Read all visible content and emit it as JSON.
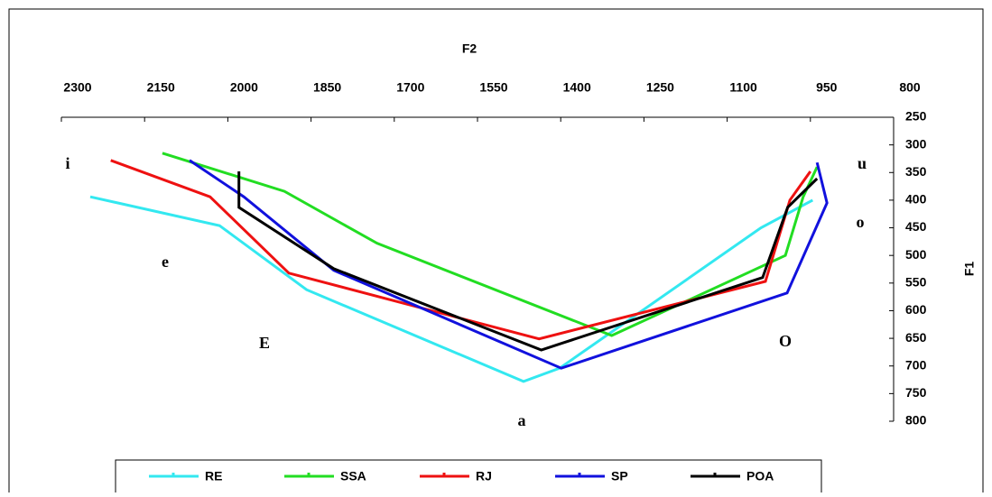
{
  "chart_data": {
    "type": "line",
    "x_label": "F2",
    "y_label": "F1",
    "xlim": [
      2300,
      800
    ],
    "xticks": [
      2300,
      2150,
      2000,
      1850,
      1700,
      1550,
      1400,
      1250,
      1100,
      950,
      800
    ],
    "ylim": [
      250,
      800
    ],
    "yticks": [
      250,
      300,
      350,
      400,
      450,
      500,
      550,
      600,
      650,
      700,
      750,
      800
    ],
    "annotations": [
      "i",
      "e",
      "E",
      "a",
      "O",
      "o",
      "u"
    ],
    "legend": "bottom",
    "series": [
      {
        "name": "RE",
        "color": "#33e8f0",
        "x": [
          2248,
          2015,
          1858,
          1467,
          1402,
          1039,
          946
        ],
        "values": [
          394,
          446,
          562,
          728,
          704,
          450,
          400
        ]
      },
      {
        "name": "SSA",
        "color": "#22dd22",
        "x": [
          2118,
          1898,
          1731,
          1308,
          995,
          963,
          938
        ],
        "values": [
          315,
          384,
          478,
          645,
          500,
          394,
          340
        ]
      },
      {
        "name": "RJ",
        "color": "#ee1111",
        "x": [
          2211,
          2032,
          1890,
          1439,
          1031,
          987,
          950
        ],
        "values": [
          328,
          394,
          532,
          651,
          547,
          400,
          348
        ]
      },
      {
        "name": "SP",
        "color": "#1111dd",
        "x": [
          2069,
          1971,
          1809,
          1399,
          992,
          920,
          938
        ],
        "values": [
          328,
          394,
          527,
          704,
          568,
          405,
          332
        ]
      },
      {
        "name": "POA",
        "color": "#000000",
        "x": [
          1980,
          1980,
          1809,
          1435,
          1036,
          991,
          938
        ],
        "values": [
          348,
          413,
          524,
          671,
          540,
          413,
          361
        ]
      }
    ]
  }
}
